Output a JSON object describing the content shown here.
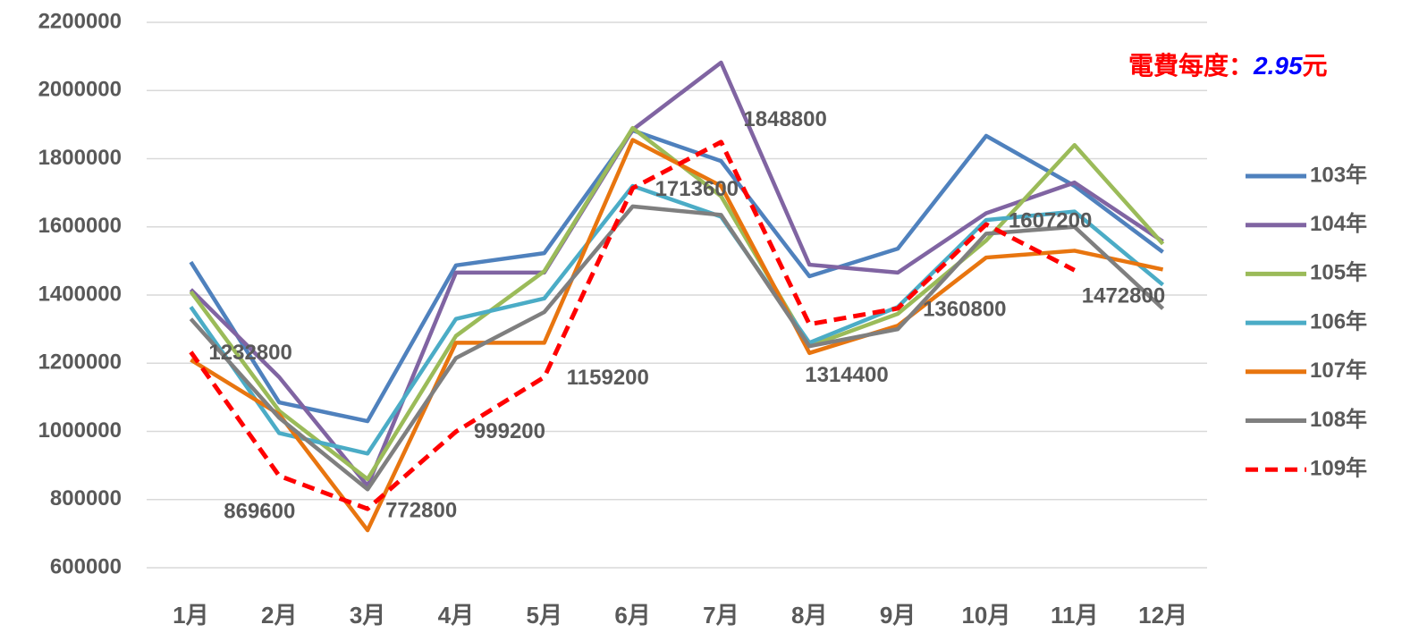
{
  "chart_data": {
    "type": "line",
    "annotation": {
      "prefix": "電費每度：",
      "rate": "2.95",
      "suffix": "元"
    },
    "categories": [
      "1月",
      "2月",
      "3月",
      "4月",
      "5月",
      "6月",
      "7月",
      "8月",
      "9月",
      "10月",
      "11月",
      "12月"
    ],
    "series": [
      {
        "name": "103年",
        "color": "#4f81bd",
        "values": [
          1497000,
          1085000,
          1030000,
          1487000,
          1523000,
          1883000,
          1793000,
          1455000,
          1536000,
          1867000,
          1720000,
          1526000
        ]
      },
      {
        "name": "104年",
        "color": "#8064a2",
        "values": [
          1416000,
          1159000,
          840000,
          1466000,
          1466000,
          1885000,
          2082000,
          1489000,
          1466000,
          1640000,
          1730000,
          1557000
        ]
      },
      {
        "name": "105年",
        "color": "#9bbb59",
        "values": [
          1410000,
          1060000,
          860000,
          1280000,
          1470000,
          1890000,
          1690000,
          1250000,
          1345000,
          1560000,
          1840000,
          1550000
        ]
      },
      {
        "name": "106年",
        "color": "#4bacc6",
        "values": [
          1365000,
          995000,
          935000,
          1330000,
          1390000,
          1720000,
          1630000,
          1260000,
          1365000,
          1620000,
          1645000,
          1430000
        ]
      },
      {
        "name": "107年",
        "color": "#e8750f",
        "values": [
          1210000,
          1050000,
          710000,
          1260000,
          1260000,
          1855000,
          1720000,
          1230000,
          1310000,
          1510000,
          1530000,
          1475000
        ]
      },
      {
        "name": "108年",
        "color": "#7f7f7f",
        "values": [
          1330000,
          1040000,
          830000,
          1215000,
          1350000,
          1660000,
          1635000,
          1250000,
          1300000,
          1580000,
          1600000,
          1360000
        ]
      },
      {
        "name": "109年",
        "color": "#ff0000",
        "dashed": true,
        "data_labels": true,
        "values": [
          1232800,
          869600,
          772800,
          999200,
          1159200,
          1713600,
          1848800,
          1314400,
          1360800,
          1607200,
          1472800,
          null
        ]
      }
    ],
    "ylim": [
      600000,
      2200000
    ],
    "yticks": [
      600000,
      800000,
      1000000,
      1200000,
      1400000,
      1600000,
      1800000,
      2000000,
      2200000
    ],
    "grid": true,
    "legend": "right"
  }
}
